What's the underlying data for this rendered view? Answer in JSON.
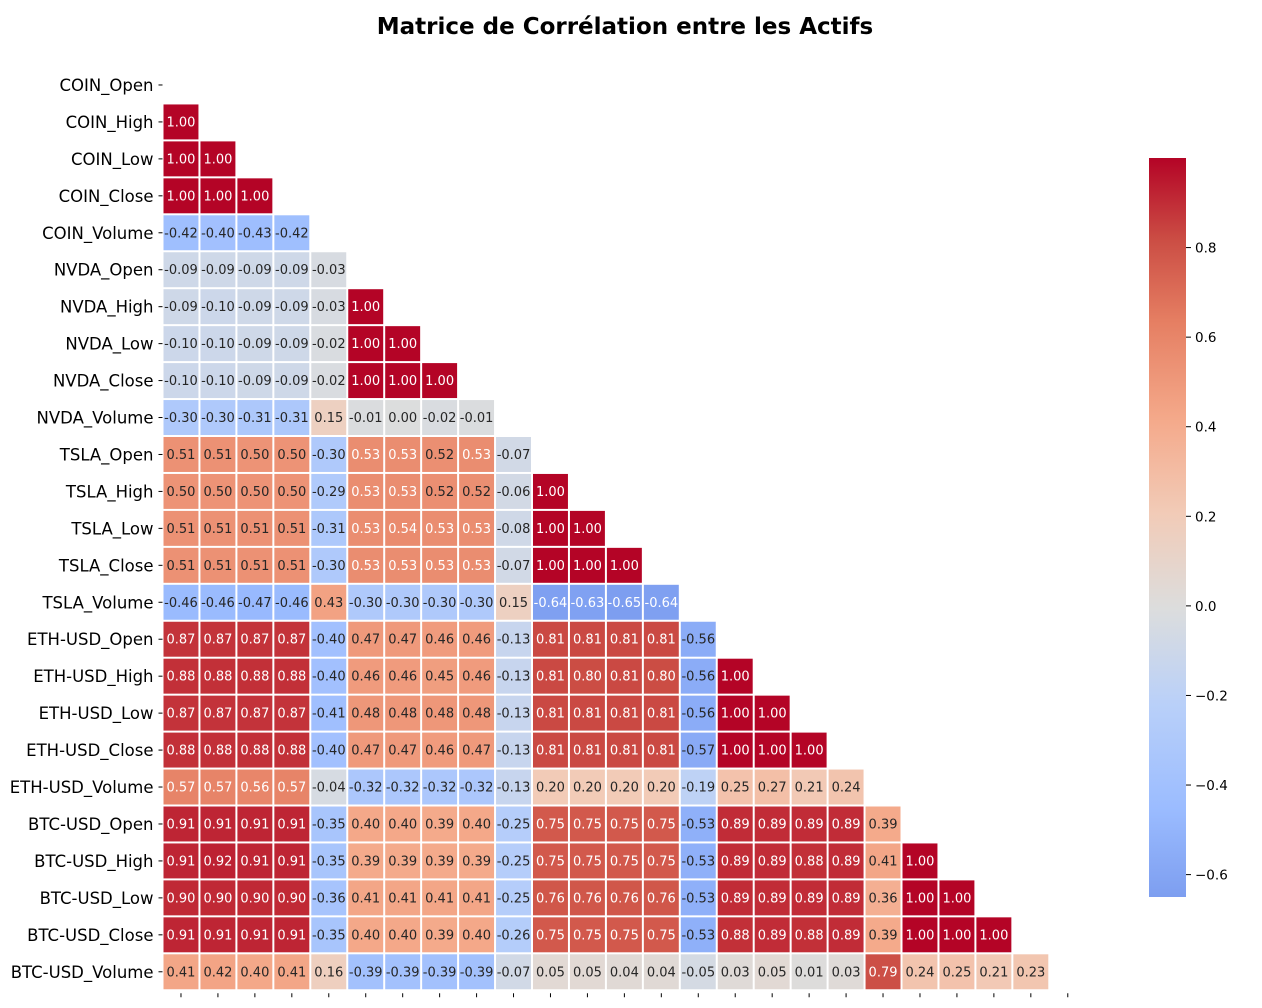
{
  "chart_data": {
    "type": "heatmap",
    "title": "Matrice de Corrélation entre les Actifs",
    "mask": "upper-triangle-and-diagonal",
    "annotation_format": "2 decimals",
    "colormap": "coolwarm",
    "labels": [
      "COIN_Open",
      "COIN_High",
      "COIN_Low",
      "COIN_Close",
      "COIN_Volume",
      "NVDA_Open",
      "NVDA_High",
      "NVDA_Low",
      "NVDA_Close",
      "NVDA_Volume",
      "TSLA_Open",
      "TSLA_High",
      "TSLA_Low",
      "TSLA_Close",
      "TSLA_Volume",
      "ETH-USD_Open",
      "ETH-USD_High",
      "ETH-USD_Low",
      "ETH-USD_Close",
      "ETH-USD_Volume",
      "BTC-USD_Open",
      "BTC-USD_High",
      "BTC-USD_Low",
      "BTC-USD_Close",
      "BTC-USD_Volume"
    ],
    "x_tick_count": 25,
    "rows": [
      [],
      [
        1.0
      ],
      [
        1.0,
        1.0
      ],
      [
        1.0,
        1.0,
        1.0
      ],
      [
        -0.42,
        -0.4,
        -0.43,
        -0.42
      ],
      [
        -0.09,
        -0.09,
        -0.09,
        -0.09,
        -0.03
      ],
      [
        -0.09,
        -0.1,
        -0.09,
        -0.09,
        -0.03,
        1.0
      ],
      [
        -0.1,
        -0.1,
        -0.09,
        -0.09,
        -0.02,
        1.0,
        1.0
      ],
      [
        -0.1,
        -0.1,
        -0.09,
        -0.09,
        -0.02,
        1.0,
        1.0,
        1.0
      ],
      [
        -0.3,
        -0.3,
        -0.31,
        -0.31,
        0.15,
        -0.01,
        0.0,
        -0.02,
        -0.01
      ],
      [
        0.51,
        0.51,
        0.5,
        0.5,
        -0.3,
        0.53,
        0.53,
        0.52,
        0.53,
        -0.07
      ],
      [
        0.5,
        0.5,
        0.5,
        0.5,
        -0.29,
        0.53,
        0.53,
        0.52,
        0.52,
        -0.06,
        1.0
      ],
      [
        0.51,
        0.51,
        0.51,
        0.51,
        -0.31,
        0.53,
        0.54,
        0.53,
        0.53,
        -0.08,
        1.0,
        1.0
      ],
      [
        0.51,
        0.51,
        0.51,
        0.51,
        -0.3,
        0.53,
        0.53,
        0.53,
        0.53,
        -0.07,
        1.0,
        1.0,
        1.0
      ],
      [
        -0.46,
        -0.46,
        -0.47,
        -0.46,
        0.43,
        -0.3,
        -0.3,
        -0.3,
        -0.3,
        0.15,
        -0.64,
        -0.63,
        -0.65,
        -0.64
      ],
      [
        0.87,
        0.87,
        0.87,
        0.87,
        -0.4,
        0.47,
        0.47,
        0.46,
        0.46,
        -0.13,
        0.81,
        0.81,
        0.81,
        0.81,
        -0.56
      ],
      [
        0.88,
        0.88,
        0.88,
        0.88,
        -0.4,
        0.46,
        0.46,
        0.45,
        0.46,
        -0.13,
        0.81,
        0.8,
        0.81,
        0.8,
        -0.56,
        1.0
      ],
      [
        0.87,
        0.87,
        0.87,
        0.87,
        -0.41,
        0.48,
        0.48,
        0.48,
        0.48,
        -0.13,
        0.81,
        0.81,
        0.81,
        0.81,
        -0.56,
        1.0,
        1.0
      ],
      [
        0.88,
        0.88,
        0.88,
        0.88,
        -0.4,
        0.47,
        0.47,
        0.46,
        0.47,
        -0.13,
        0.81,
        0.81,
        0.81,
        0.81,
        -0.57,
        1.0,
        1.0,
        1.0
      ],
      [
        0.57,
        0.57,
        0.56,
        0.57,
        -0.04,
        -0.32,
        -0.32,
        -0.32,
        -0.32,
        -0.13,
        0.2,
        0.2,
        0.2,
        0.2,
        -0.19,
        0.25,
        0.27,
        0.21,
        0.24
      ],
      [
        0.91,
        0.91,
        0.91,
        0.91,
        -0.35,
        0.4,
        0.4,
        0.39,
        0.4,
        -0.25,
        0.75,
        0.75,
        0.75,
        0.75,
        -0.53,
        0.89,
        0.89,
        0.89,
        0.89,
        0.39
      ],
      [
        0.91,
        0.92,
        0.91,
        0.91,
        -0.35,
        0.39,
        0.39,
        0.39,
        0.39,
        -0.25,
        0.75,
        0.75,
        0.75,
        0.75,
        -0.53,
        0.89,
        0.89,
        0.88,
        0.89,
        0.41,
        1.0
      ],
      [
        0.9,
        0.9,
        0.9,
        0.9,
        -0.36,
        0.41,
        0.41,
        0.41,
        0.41,
        -0.25,
        0.76,
        0.76,
        0.76,
        0.76,
        -0.53,
        0.89,
        0.89,
        0.89,
        0.89,
        0.36,
        1.0,
        1.0
      ],
      [
        0.91,
        0.91,
        0.91,
        0.91,
        -0.35,
        0.4,
        0.4,
        0.39,
        0.4,
        -0.26,
        0.75,
        0.75,
        0.75,
        0.75,
        -0.53,
        0.88,
        0.89,
        0.88,
        0.89,
        0.39,
        1.0,
        1.0,
        1.0
      ],
      [
        0.41,
        0.42,
        0.4,
        0.41,
        0.16,
        -0.39,
        -0.39,
        -0.39,
        -0.39,
        -0.07,
        0.05,
        0.05,
        0.04,
        0.04,
        -0.05,
        0.03,
        0.05,
        0.01,
        0.03,
        0.79,
        0.24,
        0.25,
        0.21,
        0.23
      ]
    ],
    "colorbar": {
      "vmin": -0.65,
      "vmax": 1.0,
      "ticks": [
        0.8,
        0.6,
        0.4,
        0.2,
        0.0,
        -0.2,
        -0.4,
        -0.6
      ],
      "tick_labels": [
        "0.8",
        "0.6",
        "0.4",
        "0.2",
        "0.0",
        "−0.2",
        "−0.4",
        "−0.6"
      ]
    }
  }
}
